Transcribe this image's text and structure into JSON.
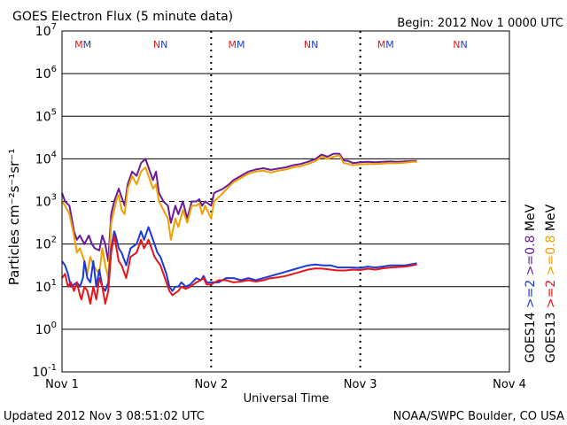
{
  "chart_data": {
    "type": "line",
    "title": "GOES Electron Flux (5 minute data)",
    "begin_label": "Begin: 2012 Nov 1 0000 UTC",
    "xlabel": "Universal Time",
    "ylabel": "Particles cm⁻²s⁻¹sr⁻¹",
    "x_ticks": [
      "Nov 1",
      "Nov 2",
      "Nov 3",
      "Nov 4"
    ],
    "xlim_days": [
      0,
      3
    ],
    "y_scale": "log",
    "ylim_exp": [
      -1,
      7
    ],
    "y_tick_base": "10",
    "y_tick_exps": [
      "-1",
      "0",
      "1",
      "2",
      "3",
      "4",
      "5",
      "6",
      "7"
    ],
    "markers": [
      {
        "label": "MM",
        "day": 0.14
      },
      {
        "label": "NN",
        "day": 0.66
      },
      {
        "label": "MM",
        "day": 1.17
      },
      {
        "label": "NN",
        "day": 1.67
      },
      {
        "label": "MM",
        "day": 2.17
      },
      {
        "label": "NN",
        "day": 2.67
      }
    ],
    "threshold_line_exp": 3,
    "series": [
      {
        "name": "GOES14 >=0.8 MeV",
        "color": "#6a1b9a",
        "points": [
          [
            0.0,
            3.2
          ],
          [
            0.02,
            3.0
          ],
          [
            0.05,
            2.9
          ],
          [
            0.08,
            2.3
          ],
          [
            0.1,
            2.1
          ],
          [
            0.12,
            2.2
          ],
          [
            0.15,
            2.0
          ],
          [
            0.18,
            2.2
          ],
          [
            0.2,
            2.0
          ],
          [
            0.22,
            1.9
          ],
          [
            0.25,
            1.85
          ],
          [
            0.27,
            2.2
          ],
          [
            0.29,
            2.0
          ],
          [
            0.31,
            1.6
          ],
          [
            0.33,
            2.7
          ],
          [
            0.35,
            3.0
          ],
          [
            0.37,
            3.2
          ],
          [
            0.38,
            3.3
          ],
          [
            0.4,
            3.1
          ],
          [
            0.42,
            2.9
          ],
          [
            0.44,
            3.4
          ],
          [
            0.47,
            3.7
          ],
          [
            0.5,
            3.6
          ],
          [
            0.53,
            3.9
          ],
          [
            0.56,
            4.0
          ],
          [
            0.58,
            3.8
          ],
          [
            0.61,
            3.5
          ],
          [
            0.63,
            3.7
          ],
          [
            0.65,
            3.2
          ],
          [
            0.68,
            3.0
          ],
          [
            0.71,
            2.9
          ],
          [
            0.73,
            2.5
          ],
          [
            0.76,
            2.9
          ],
          [
            0.78,
            2.7
          ],
          [
            0.81,
            3.0
          ],
          [
            0.84,
            2.6
          ],
          [
            0.87,
            3.0
          ],
          [
            0.9,
            3.0
          ],
          [
            0.92,
            3.05
          ],
          [
            0.94,
            2.9
          ],
          [
            0.96,
            3.0
          ],
          [
            1.0,
            2.9
          ],
          [
            1.02,
            3.2
          ],
          [
            1.05,
            3.25
          ],
          [
            1.08,
            3.3
          ],
          [
            1.12,
            3.4
          ],
          [
            1.15,
            3.5
          ],
          [
            1.2,
            3.6
          ],
          [
            1.25,
            3.7
          ],
          [
            1.3,
            3.75
          ],
          [
            1.35,
            3.78
          ],
          [
            1.4,
            3.74
          ],
          [
            1.45,
            3.77
          ],
          [
            1.5,
            3.8
          ],
          [
            1.55,
            3.85
          ],
          [
            1.6,
            3.88
          ],
          [
            1.65,
            3.93
          ],
          [
            1.7,
            4.0
          ],
          [
            1.74,
            4.1
          ],
          [
            1.78,
            4.05
          ],
          [
            1.82,
            4.12
          ],
          [
            1.86,
            4.12
          ],
          [
            1.89,
            3.96
          ],
          [
            1.92,
            3.95
          ],
          [
            1.95,
            3.9
          ],
          [
            2.0,
            3.92
          ],
          [
            2.05,
            3.93
          ],
          [
            2.1,
            3.92
          ],
          [
            2.15,
            3.93
          ],
          [
            2.2,
            3.94
          ],
          [
            2.25,
            3.93
          ],
          [
            2.3,
            3.94
          ],
          [
            2.35,
            3.95
          ],
          [
            2.38,
            3.95
          ]
        ]
      },
      {
        "name": "GOES13 >=0.8 MeV",
        "color": "#f0a000",
        "points": [
          [
            0.0,
            3.0
          ],
          [
            0.02,
            2.9
          ],
          [
            0.05,
            2.7
          ],
          [
            0.08,
            2.2
          ],
          [
            0.1,
            1.8
          ],
          [
            0.12,
            1.9
          ],
          [
            0.15,
            1.6
          ],
          [
            0.17,
            1.3
          ],
          [
            0.19,
            1.7
          ],
          [
            0.21,
            1.5
          ],
          [
            0.23,
            1.4
          ],
          [
            0.25,
            1.3
          ],
          [
            0.27,
            1.9
          ],
          [
            0.29,
            1.5
          ],
          [
            0.31,
            1.2
          ],
          [
            0.33,
            2.5
          ],
          [
            0.35,
            2.8
          ],
          [
            0.37,
            3.1
          ],
          [
            0.38,
            3.15
          ],
          [
            0.4,
            2.8
          ],
          [
            0.42,
            2.7
          ],
          [
            0.44,
            3.3
          ],
          [
            0.47,
            3.6
          ],
          [
            0.5,
            3.4
          ],
          [
            0.53,
            3.7
          ],
          [
            0.56,
            3.8
          ],
          [
            0.58,
            3.6
          ],
          [
            0.61,
            3.3
          ],
          [
            0.63,
            3.4
          ],
          [
            0.65,
            3.0
          ],
          [
            0.68,
            2.8
          ],
          [
            0.71,
            2.6
          ],
          [
            0.73,
            2.1
          ],
          [
            0.76,
            2.6
          ],
          [
            0.78,
            2.4
          ],
          [
            0.81,
            2.8
          ],
          [
            0.84,
            2.5
          ],
          [
            0.87,
            2.9
          ],
          [
            0.9,
            2.9
          ],
          [
            0.92,
            2.95
          ],
          [
            0.94,
            2.7
          ],
          [
            0.96,
            2.9
          ],
          [
            1.0,
            2.6
          ],
          [
            1.02,
            3.0
          ],
          [
            1.05,
            3.1
          ],
          [
            1.08,
            3.2
          ],
          [
            1.12,
            3.35
          ],
          [
            1.15,
            3.45
          ],
          [
            1.2,
            3.55
          ],
          [
            1.25,
            3.65
          ],
          [
            1.3,
            3.7
          ],
          [
            1.35,
            3.72
          ],
          [
            1.4,
            3.68
          ],
          [
            1.45,
            3.72
          ],
          [
            1.5,
            3.75
          ],
          [
            1.55,
            3.8
          ],
          [
            1.6,
            3.83
          ],
          [
            1.65,
            3.88
          ],
          [
            1.7,
            3.95
          ],
          [
            1.74,
            4.05
          ],
          [
            1.78,
            4.0
          ],
          [
            1.82,
            4.05
          ],
          [
            1.86,
            4.08
          ],
          [
            1.89,
            3.9
          ],
          [
            1.92,
            3.88
          ],
          [
            1.95,
            3.85
          ],
          [
            2.0,
            3.87
          ],
          [
            2.05,
            3.88
          ],
          [
            2.1,
            3.88
          ],
          [
            2.15,
            3.89
          ],
          [
            2.2,
            3.9
          ],
          [
            2.25,
            3.9
          ],
          [
            2.3,
            3.91
          ],
          [
            2.35,
            3.93
          ],
          [
            2.38,
            3.93
          ]
        ]
      },
      {
        "name": "GOES14 >=2 MeV",
        "color": "#1a3ad8",
        "points": [
          [
            0.0,
            1.6
          ],
          [
            0.02,
            1.5
          ],
          [
            0.04,
            1.3
          ],
          [
            0.06,
            1.0
          ],
          [
            0.08,
            1.05
          ],
          [
            0.1,
            1.1
          ],
          [
            0.12,
            1.0
          ],
          [
            0.14,
            1.2
          ],
          [
            0.15,
            1.6
          ],
          [
            0.17,
            1.2
          ],
          [
            0.19,
            1.1
          ],
          [
            0.21,
            1.6
          ],
          [
            0.23,
            1.0
          ],
          [
            0.25,
            1.4
          ],
          [
            0.27,
            1.0
          ],
          [
            0.29,
            0.9
          ],
          [
            0.31,
            1.1
          ],
          [
            0.33,
            1.9
          ],
          [
            0.35,
            2.3
          ],
          [
            0.36,
            2.2
          ],
          [
            0.38,
            1.9
          ],
          [
            0.4,
            1.8
          ],
          [
            0.43,
            1.5
          ],
          [
            0.46,
            1.9
          ],
          [
            0.5,
            2.0
          ],
          [
            0.53,
            2.3
          ],
          [
            0.55,
            2.1
          ],
          [
            0.58,
            2.4
          ],
          [
            0.6,
            2.2
          ],
          [
            0.62,
            2.0
          ],
          [
            0.64,
            1.8
          ],
          [
            0.66,
            1.7
          ],
          [
            0.68,
            1.5
          ],
          [
            0.7,
            1.3
          ],
          [
            0.72,
            1.0
          ],
          [
            0.74,
            0.9
          ],
          [
            0.76,
            1.0
          ],
          [
            0.78,
            1.0
          ],
          [
            0.8,
            1.1
          ],
          [
            0.83,
            1.0
          ],
          [
            0.86,
            1.05
          ],
          [
            0.9,
            1.2
          ],
          [
            0.93,
            1.15
          ],
          [
            0.95,
            1.25
          ],
          [
            0.97,
            1.1
          ],
          [
            1.0,
            1.1
          ],
          [
            1.05,
            1.1
          ],
          [
            1.1,
            1.2
          ],
          [
            1.15,
            1.2
          ],
          [
            1.2,
            1.15
          ],
          [
            1.25,
            1.2
          ],
          [
            1.3,
            1.15
          ],
          [
            1.35,
            1.2
          ],
          [
            1.4,
            1.25
          ],
          [
            1.45,
            1.3
          ],
          [
            1.5,
            1.35
          ],
          [
            1.55,
            1.4
          ],
          [
            1.6,
            1.45
          ],
          [
            1.65,
            1.5
          ],
          [
            1.7,
            1.52
          ],
          [
            1.75,
            1.5
          ],
          [
            1.8,
            1.5
          ],
          [
            1.85,
            1.45
          ],
          [
            1.9,
            1.45
          ],
          [
            1.95,
            1.45
          ],
          [
            2.0,
            1.44
          ],
          [
            2.05,
            1.47
          ],
          [
            2.1,
            1.45
          ],
          [
            2.15,
            1.47
          ],
          [
            2.2,
            1.5
          ],
          [
            2.25,
            1.5
          ],
          [
            2.3,
            1.5
          ],
          [
            2.35,
            1.53
          ],
          [
            2.38,
            1.55
          ]
        ]
      },
      {
        "name": "GOES13 >=2 MeV",
        "color": "#e8141a",
        "points": [
          [
            0.0,
            1.2
          ],
          [
            0.02,
            1.3
          ],
          [
            0.04,
            1.0
          ],
          [
            0.06,
            1.1
          ],
          [
            0.08,
            0.9
          ],
          [
            0.1,
            1.1
          ],
          [
            0.12,
            0.8
          ],
          [
            0.13,
            0.7
          ],
          [
            0.15,
            1.0
          ],
          [
            0.17,
            0.9
          ],
          [
            0.19,
            0.6
          ],
          [
            0.21,
            1.0
          ],
          [
            0.23,
            0.7
          ],
          [
            0.25,
            1.2
          ],
          [
            0.27,
            1.0
          ],
          [
            0.29,
            0.6
          ],
          [
            0.31,
            0.9
          ],
          [
            0.33,
            1.8
          ],
          [
            0.35,
            2.2
          ],
          [
            0.36,
            2.0
          ],
          [
            0.38,
            1.6
          ],
          [
            0.4,
            1.5
          ],
          [
            0.43,
            1.2
          ],
          [
            0.46,
            1.7
          ],
          [
            0.5,
            1.8
          ],
          [
            0.53,
            2.1
          ],
          [
            0.55,
            1.9
          ],
          [
            0.58,
            2.1
          ],
          [
            0.6,
            1.9
          ],
          [
            0.62,
            1.7
          ],
          [
            0.64,
            1.6
          ],
          [
            0.66,
            1.5
          ],
          [
            0.68,
            1.3
          ],
          [
            0.7,
            1.1
          ],
          [
            0.72,
            0.9
          ],
          [
            0.74,
            0.8
          ],
          [
            0.76,
            0.85
          ],
          [
            0.78,
            0.9
          ],
          [
            0.8,
            1.0
          ],
          [
            0.83,
            0.95
          ],
          [
            0.86,
            1.0
          ],
          [
            0.9,
            1.1
          ],
          [
            0.93,
            1.15
          ],
          [
            0.95,
            1.2
          ],
          [
            0.97,
            1.05
          ],
          [
            1.0,
            1.05
          ],
          [
            1.05,
            1.15
          ],
          [
            1.1,
            1.15
          ],
          [
            1.15,
            1.1
          ],
          [
            1.2,
            1.12
          ],
          [
            1.25,
            1.15
          ],
          [
            1.3,
            1.12
          ],
          [
            1.35,
            1.15
          ],
          [
            1.4,
            1.2
          ],
          [
            1.45,
            1.22
          ],
          [
            1.5,
            1.25
          ],
          [
            1.55,
            1.3
          ],
          [
            1.6,
            1.35
          ],
          [
            1.65,
            1.4
          ],
          [
            1.7,
            1.43
          ],
          [
            1.75,
            1.42
          ],
          [
            1.8,
            1.4
          ],
          [
            1.85,
            1.38
          ],
          [
            1.9,
            1.38
          ],
          [
            1.95,
            1.4
          ],
          [
            2.0,
            1.39
          ],
          [
            2.05,
            1.42
          ],
          [
            2.1,
            1.4
          ],
          [
            2.15,
            1.43
          ],
          [
            2.2,
            1.45
          ],
          [
            2.25,
            1.46
          ],
          [
            2.3,
            1.47
          ],
          [
            2.35,
            1.5
          ],
          [
            2.38,
            1.52
          ]
        ]
      }
    ],
    "legend_right": [
      {
        "sat": "GOES14",
        "sat_color": "#000000",
        "sep": " ",
        "ch": ">=2",
        "ch_color": "#1a3ad8",
        "ch2": ">=0.8",
        "ch2_color": "#6a1b9a",
        "unit": "MeV"
      },
      {
        "sat": "GOES13",
        "sat_color": "#000000",
        "sep": " ",
        "ch": ">=2",
        "ch_color": "#e8141a",
        "ch2": ">=0.8",
        "ch2_color": "#f0a000",
        "unit": "MeV"
      }
    ]
  },
  "footer": {
    "updated": "Updated 2012 Nov  3 08:51:02 UTC",
    "credit": "NOAA/SWPC Boulder, CO USA"
  }
}
